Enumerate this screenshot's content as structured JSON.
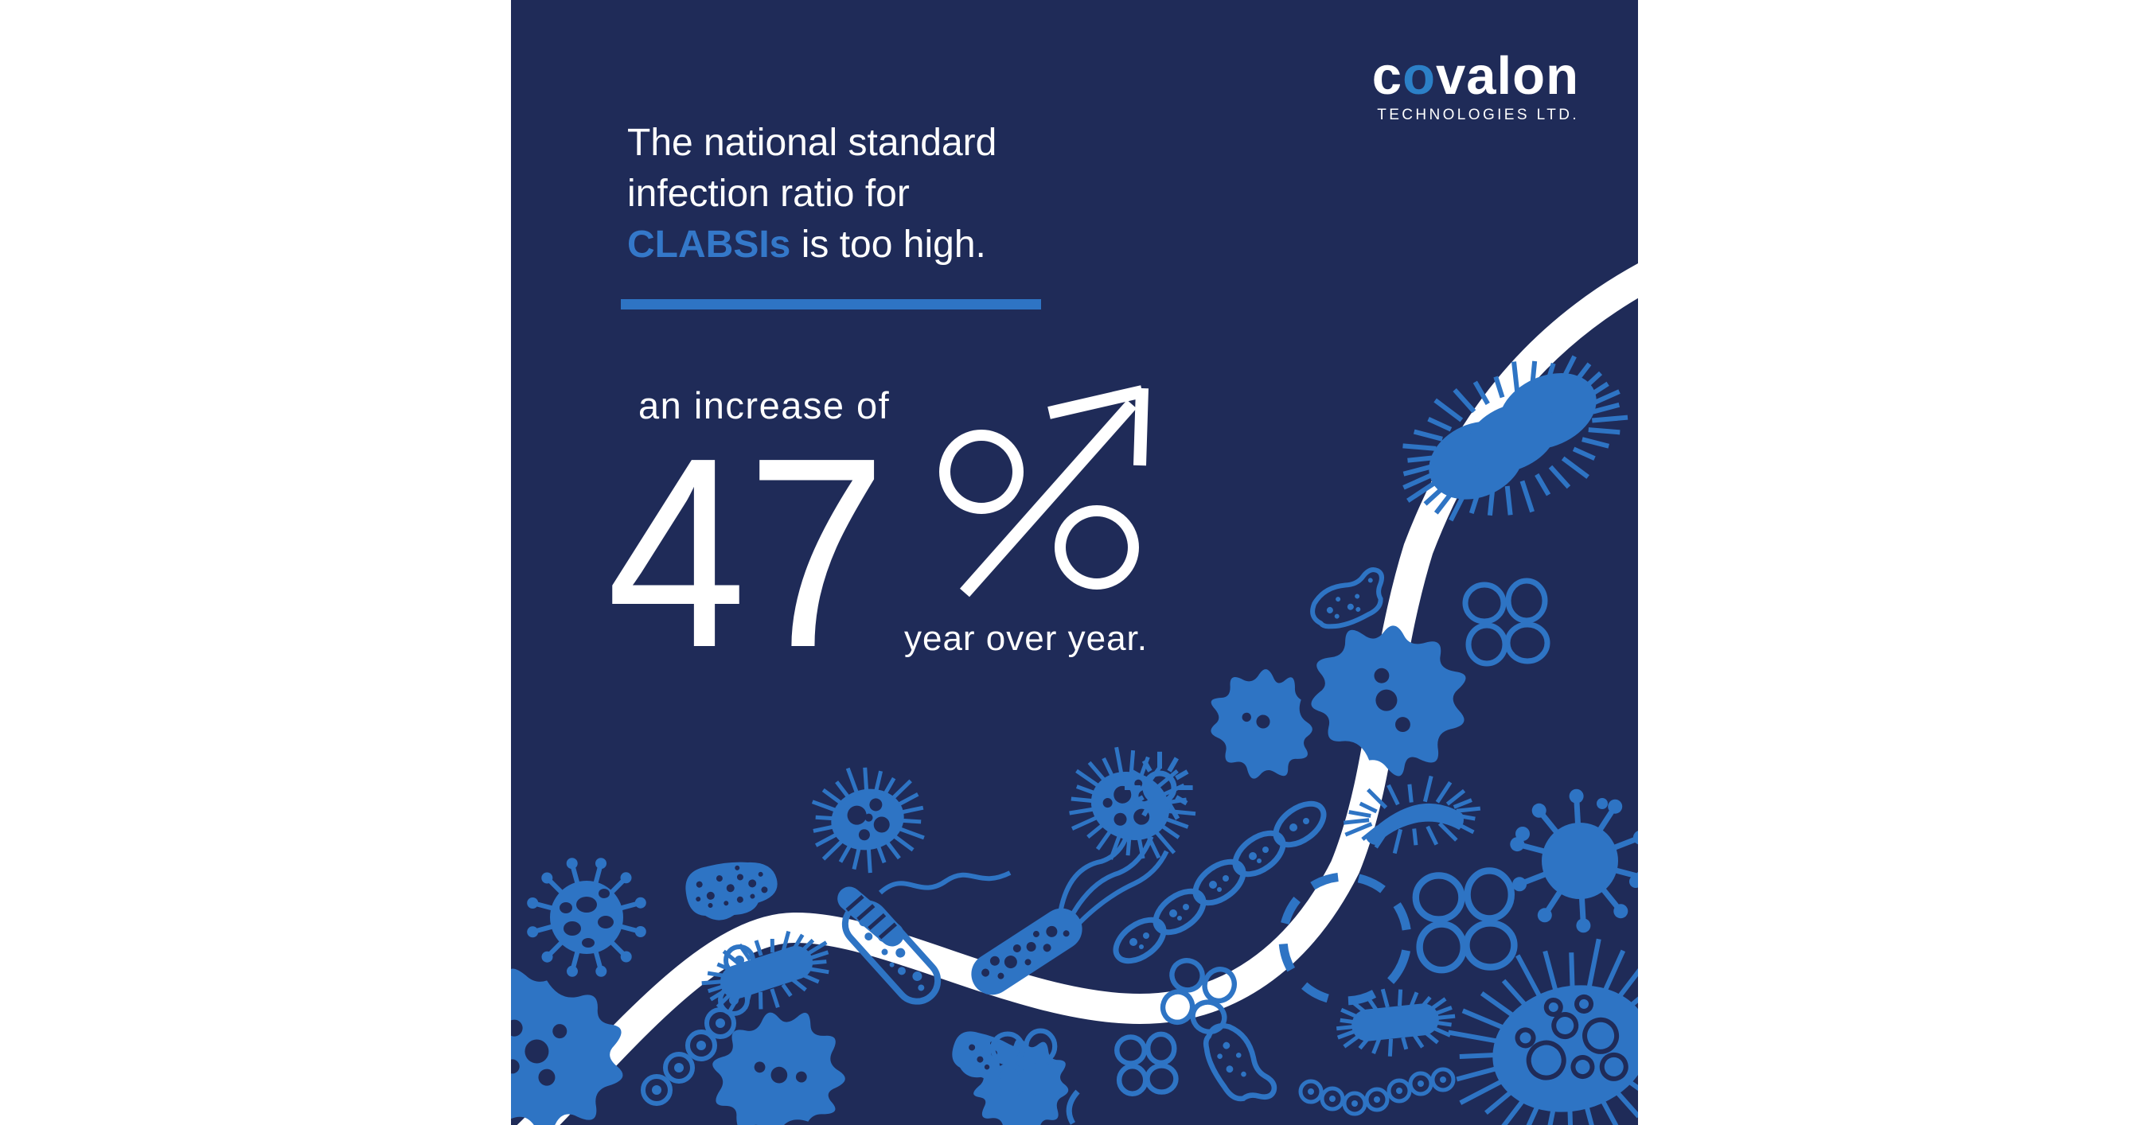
{
  "colors": {
    "background": "#FFFFFF",
    "panel_navy": "#1F2B58",
    "microbe_blue": "#2E74C4",
    "accent_blue": "#3478C9",
    "logo_o_blue": "#2C80C7",
    "white": "#FFFFFF"
  },
  "logo": {
    "brand_prefix": "c",
    "brand_o": "o",
    "brand_suffix": "valon",
    "subtitle": "TECHNOLOGIES LTD."
  },
  "headline": {
    "line1": "The national standard",
    "line2": "infection ratio for",
    "line3_highlight": "CLABSIs",
    "line3_rest": " is too high."
  },
  "stat": {
    "lead_in": "an increase of",
    "value": "47",
    "percent": "%",
    "suffix": "year over year."
  },
  "illustration": {
    "trend": "white curved line rising steeply to upper right with arrow through percent sign",
    "icons": [
      "coronavirus-icon",
      "virus-ball-icon",
      "amoeba-splat-icon",
      "dotted-blob-icon",
      "streptococcus-chain-icon",
      "capsule-bacterium-icon",
      "flagellated-rod-icon",
      "spirochete-worm-icon",
      "oval-cell-chain-icon",
      "fish-microbe-icon",
      "spiny-caterpillar-icon",
      "hairy-rod-icon",
      "large-hairy-bacterium-icon",
      "hairy-cell-icon",
      "spiky-egg-icon",
      "spiky-sun-icon",
      "cocci-cluster-icon",
      "cocci-dot-chain-icon",
      "dashed-circle-icon"
    ]
  }
}
